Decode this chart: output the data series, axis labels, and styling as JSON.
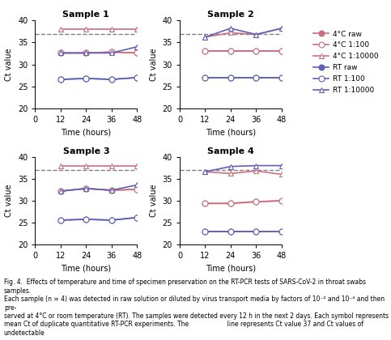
{
  "time": [
    12,
    24,
    36,
    48
  ],
  "dashed_line_y": 37,
  "ylim": [
    20,
    40
  ],
  "yticks": [
    20,
    25,
    30,
    35,
    40
  ],
  "xlim": [
    0,
    48
  ],
  "xticks": [
    0,
    12,
    24,
    36,
    48
  ],
  "samples": {
    "Sample 1": {
      "4C_raw": [
        32.6,
        32.6,
        32.8,
        32.6
      ],
      "4C_100": [
        32.6,
        32.6,
        32.8,
        32.6
      ],
      "4C_10000": [
        38.0,
        38.0,
        38.0,
        38.0
      ],
      "RT_raw": [
        26.6,
        26.8,
        26.6,
        27.0
      ],
      "RT_100": [
        26.6,
        26.8,
        26.6,
        27.0
      ],
      "RT_10000": [
        32.6,
        32.6,
        32.6,
        34.0
      ]
    },
    "Sample 2": {
      "4C_raw": [
        33.0,
        33.0,
        33.0,
        33.0
      ],
      "4C_100": [
        33.0,
        33.0,
        33.0,
        33.0
      ],
      "4C_10000": [
        36.2,
        37.2,
        36.8,
        38.2
      ],
      "RT_raw": [
        27.0,
        27.0,
        27.0,
        27.0
      ],
      "RT_100": [
        27.0,
        27.0,
        27.0,
        27.0
      ],
      "RT_10000": [
        36.2,
        38.2,
        36.8,
        38.2
      ]
    },
    "Sample 3": {
      "4C_raw": [
        32.2,
        32.8,
        32.4,
        32.6
      ],
      "4C_100": [
        32.2,
        32.8,
        32.4,
        32.6
      ],
      "4C_10000": [
        38.0,
        38.0,
        38.0,
        38.0
      ],
      "RT_raw": [
        25.6,
        25.8,
        25.6,
        26.2
      ],
      "RT_100": [
        25.6,
        25.8,
        25.6,
        26.2
      ],
      "RT_10000": [
        32.2,
        32.8,
        32.4,
        33.6
      ]
    },
    "Sample 4": {
      "4C_raw": [
        29.4,
        29.4,
        29.8,
        30.0
      ],
      "4C_100": [
        29.4,
        29.4,
        29.8,
        30.0
      ],
      "4C_10000": [
        36.6,
        36.2,
        36.8,
        36.0
      ],
      "RT_raw": [
        23.0,
        23.0,
        23.0,
        23.0
      ],
      "RT_100": [
        23.0,
        23.0,
        23.0,
        23.0
      ],
      "RT_10000": [
        36.6,
        37.8,
        38.0,
        38.0
      ]
    }
  },
  "colors": {
    "4C_raw": "#c8889a",
    "4C_100": "#c8889a",
    "4C_10000": "#c8889a",
    "RT_raw": "#7070c8",
    "RT_100": "#7070c8",
    "RT_10000": "#7070c8"
  },
  "legend_labels": [
    "4°C raw",
    "4°C 1:100",
    "4°C 1:10000",
    "RT raw",
    "RT 1:100",
    "RT 1:10000"
  ],
  "xlabel": "Time (hours)",
  "ylabel": "Ct value",
  "figure_caption": "Fig. 4.  Effects of temperature and time of specimen preservation on the RT-PCR tests of SARS-CoV-2 in throat swabs samples.\nEach sample (n = 4) was detected in raw solution or diluted by virus transport media by factors of 10⁻² and 10⁻⁴ and then pre-\nserved at 4°C or room temperature (RT). The samples were detected every 12 h in the next 2 days. Each symbol represents\nmean Ct of duplicate quantitative RT-PCR experiments. The line represents Ct value 37 and Ct values of undetectable"
}
